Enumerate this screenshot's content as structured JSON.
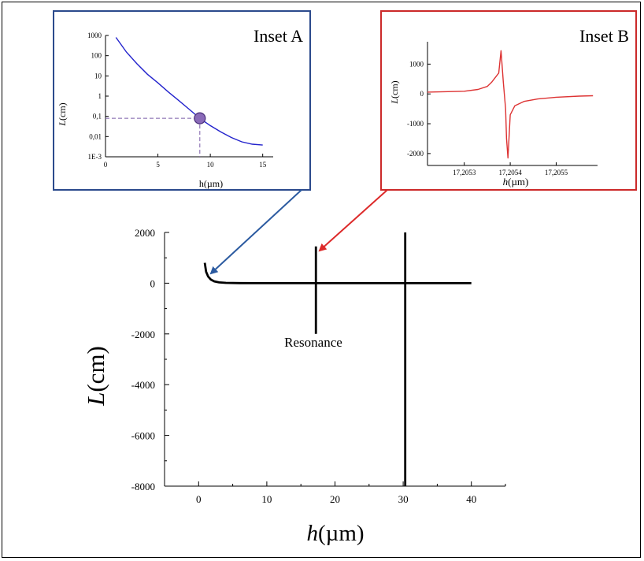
{
  "chart_data": [
    {
      "id": "main",
      "type": "line",
      "xlabel_italic": "h",
      "xlabel_unit": "(µm)",
      "ylabel_italic": "L",
      "ylabel_unit": "(cm)",
      "xlim": [
        -5,
        45
      ],
      "ylim": [
        -8000,
        2000
      ],
      "xticks": [
        0,
        10,
        20,
        30,
        40
      ],
      "yticks": [
        2000,
        0,
        -2000,
        -4000,
        -6000,
        -8000
      ],
      "grid": false,
      "series": [
        {
          "x": [
            0.9,
            1.1,
            1.4,
            1.8,
            2.3,
            3.0,
            4.0,
            6.0,
            10,
            15,
            17.2
          ],
          "y": [
            800,
            450,
            260,
            140,
            70,
            30,
            12,
            3,
            0.5,
            0.05,
            0
          ]
        },
        {
          "x": [
            17.2,
            40
          ],
          "y": [
            0,
            0
          ]
        }
      ],
      "vertical_lines": [
        {
          "x": 17.2,
          "y_from": -2000,
          "y_to": 1450
        },
        {
          "x": 30.3,
          "y_from": -8000,
          "y_to": 2000
        }
      ],
      "annotation": "Resonance",
      "annotation_at": {
        "x": 17.2,
        "y": -2000
      }
    },
    {
      "id": "inset_a",
      "title": "Inset A",
      "type": "line",
      "yscale": "log",
      "xlabel": "h(µm)",
      "ylabel_italic": "L",
      "ylabel_unit": "(cm)",
      "xlim": [
        0,
        16
      ],
      "ylim": [
        0.001,
        1000
      ],
      "xticks": [
        0,
        5,
        10,
        15
      ],
      "ytick_values": [
        0.001,
        0.01,
        0.1,
        1,
        10,
        100,
        1000
      ],
      "ytick_labels": [
        "1E-3",
        "0,01",
        "0,1",
        "1",
        "10",
        "100",
        "1000"
      ],
      "color": "#2222cc",
      "series": [
        {
          "x": [
            1,
            2,
            3,
            4,
            5,
            6,
            7,
            8,
            9,
            10,
            11,
            12,
            13,
            14,
            15
          ],
          "y": [
            800,
            150,
            40,
            12,
            4.5,
            1.6,
            0.6,
            0.22,
            0.08,
            0.035,
            0.017,
            0.009,
            0.0055,
            0.0042,
            0.0038
          ]
        }
      ],
      "highlight_point": {
        "x": 9,
        "y": 0.08
      },
      "highlight_color": "#7a5ca8"
    },
    {
      "id": "inset_b",
      "title": "Inset B",
      "type": "line",
      "xlabel_italic": "h",
      "xlabel_unit": "(µm)",
      "ylabel_italic": "L",
      "ylabel_unit": "(cm)",
      "xlim": [
        17.20522,
        17.20559
      ],
      "ylim": [
        -2400,
        1750
      ],
      "xticks": [
        17.2053,
        17.2054,
        17.2055
      ],
      "xtick_labels": [
        "17,2053",
        "17,2054",
        "17,2055"
      ],
      "yticks": [
        1000,
        0,
        -1000,
        -2000
      ],
      "color": "#dd3333",
      "series": [
        {
          "x": [
            17.20522,
            17.2053,
            17.20533,
            17.20535,
            17.20536,
            17.205375,
            17.20538,
            17.205385,
            17.20539,
            17.205392,
            17.205395,
            17.2054,
            17.20541,
            17.20543,
            17.20546,
            17.2055,
            17.20555,
            17.20558
          ],
          "y": [
            60,
            90,
            150,
            250,
            400,
            700,
            1450,
            400,
            -500,
            -1500,
            -2150,
            -700,
            -400,
            -250,
            -170,
            -110,
            -75,
            -60
          ]
        }
      ]
    }
  ],
  "arrows": {
    "a_color": "#2b5aa0",
    "b_color": "#dd2a2a"
  },
  "frame_colors": {
    "a": "#2b4a8c",
    "b": "#cc2a2a"
  }
}
